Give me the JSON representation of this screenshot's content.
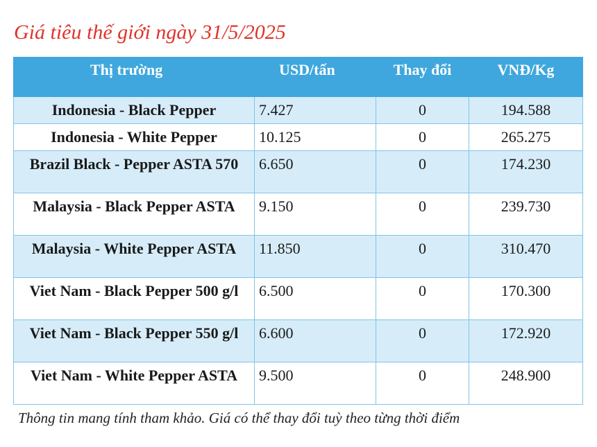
{
  "title": "Giá tiêu thế giới ngày 31/5/2025",
  "table": {
    "headers": [
      "Thị trường",
      "USD/tấn",
      "Thay đổi",
      "VNĐ/Kg"
    ],
    "rows": [
      {
        "market": "Indonesia - Black Pepper",
        "usd": "7.427",
        "change": "0",
        "vnd": "194.588"
      },
      {
        "market": "Indonesia - White Pepper",
        "usd": "10.125",
        "change": "0",
        "vnd": "265.275"
      },
      {
        "market": "Brazil Black - Pepper ASTA 570",
        "usd": "6.650",
        "change": "0",
        "vnd": "174.230"
      },
      {
        "market": "Malaysia - Black Pepper ASTA",
        "usd": "9.150",
        "change": "0",
        "vnd": "239.730"
      },
      {
        "market": "Malaysia - White Pepper ASTA",
        "usd": "11.850",
        "change": "0",
        "vnd": "310.470"
      },
      {
        "market": "Viet Nam - Black Pepper 500 g/l",
        "usd": "6.500",
        "change": "0",
        "vnd": "170.300"
      },
      {
        "market": "Viet Nam - Black Pepper 550 g/l",
        "usd": "6.600",
        "change": "0",
        "vnd": "172.920"
      },
      {
        "market": "Viet Nam - White Pepper ASTA",
        "usd": "9.500",
        "change": "0",
        "vnd": "248.900"
      }
    ]
  },
  "note": "Thông tin mang tính tham khảo. Giá có thể thay đổi tuỳ theo từng thời điểm"
}
